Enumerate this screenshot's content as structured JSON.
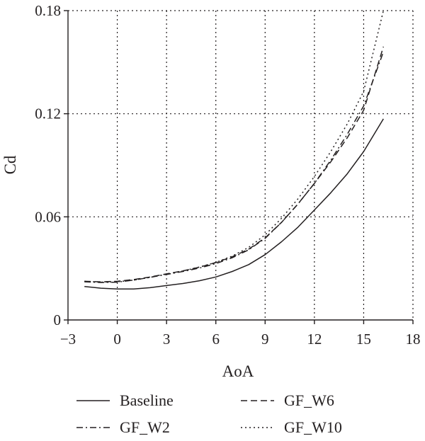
{
  "chart_data": {
    "type": "line",
    "title": "",
    "xlabel": "AoA",
    "ylabel": "Cd",
    "xlim": [
      -3,
      18
    ],
    "ylim": [
      0,
      0.18
    ],
    "xticks": [
      -3,
      0,
      3,
      6,
      9,
      12,
      15,
      18
    ],
    "xtick_labels": [
      "−3",
      "0",
      "3",
      "6",
      "9",
      "12",
      "15",
      "18"
    ],
    "yticks": [
      0,
      0.06,
      0.12,
      0.18
    ],
    "ytick_labels": [
      "0",
      "0.06",
      "0.12",
      "0.18"
    ],
    "grid": true,
    "legend_position": "bottom",
    "series": [
      {
        "name": "Baseline",
        "dash": "solid",
        "x": [
          -2,
          -1,
          0,
          1,
          2,
          3,
          4,
          5,
          6,
          7,
          8,
          9,
          10,
          11,
          12,
          13,
          14,
          15,
          16.2
        ],
        "y": [
          0.0195,
          0.0185,
          0.018,
          0.018,
          0.0188,
          0.02,
          0.0212,
          0.0228,
          0.025,
          0.0282,
          0.0322,
          0.038,
          0.0455,
          0.054,
          0.064,
          0.074,
          0.085,
          0.098,
          0.117
        ]
      },
      {
        "name": "GF_W2",
        "dash": "dash-dot",
        "x": [
          -2,
          -1,
          0,
          1,
          2,
          3,
          4,
          5,
          6,
          7,
          8,
          9,
          10,
          11,
          12,
          13,
          14,
          15,
          16.2
        ],
        "y": [
          0.0222,
          0.0218,
          0.022,
          0.0232,
          0.0248,
          0.0265,
          0.0282,
          0.0302,
          0.0328,
          0.0362,
          0.0408,
          0.0475,
          0.0568,
          0.0675,
          0.0795,
          0.093,
          0.108,
          0.1245,
          0.156
        ]
      },
      {
        "name": "GF_W6",
        "dash": "dash",
        "x": [
          -2,
          -1,
          0,
          1,
          2,
          3,
          4,
          5,
          6,
          7,
          8,
          9,
          10,
          11,
          12,
          13,
          14,
          15,
          16.2
        ],
        "y": [
          0.0225,
          0.0222,
          0.0225,
          0.0235,
          0.025,
          0.0268,
          0.0286,
          0.0307,
          0.0334,
          0.0368,
          0.0412,
          0.0478,
          0.0568,
          0.0675,
          0.0795,
          0.092,
          0.106,
          0.122,
          0.159
        ]
      },
      {
        "name": "GF_W10",
        "dash": "dot",
        "x": [
          -2,
          -1,
          0,
          1,
          2,
          3,
          4,
          5,
          6,
          7,
          8,
          9,
          10,
          11,
          12,
          13,
          14,
          15,
          16.2
        ],
        "y": [
          0.0225,
          0.022,
          0.0222,
          0.0232,
          0.0248,
          0.0266,
          0.0285,
          0.0308,
          0.0335,
          0.0372,
          0.0422,
          0.0495,
          0.0592,
          0.0705,
          0.0835,
          0.098,
          0.114,
          0.133,
          0.18
        ]
      }
    ]
  },
  "colors": {
    "ink": "#231f20",
    "grid": "#231f20",
    "background": "#ffffff"
  }
}
